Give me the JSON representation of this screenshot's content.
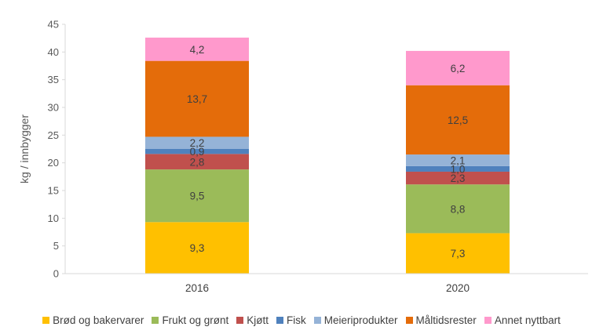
{
  "chart_data": {
    "type": "bar",
    "stacked": true,
    "categories": [
      "2016",
      "2020"
    ],
    "ylabel": "kg / innbygger",
    "xlabel": "",
    "ylim": [
      0,
      45
    ],
    "yticks": [
      "0",
      "5",
      "10",
      "15",
      "20",
      "25",
      "30",
      "35",
      "40",
      "45"
    ],
    "grid": false,
    "legend_position": "bottom",
    "series": [
      {
        "name": "Brød og bakervarer",
        "color": "#FFC000",
        "values": [
          9.3,
          7.3
        ],
        "labels": [
          "9,3",
          "7,3"
        ]
      },
      {
        "name": "Frukt og grønt",
        "color": "#9BBB59",
        "values": [
          9.5,
          8.8
        ],
        "labels": [
          "9,5",
          "8,8"
        ]
      },
      {
        "name": "Kjøtt",
        "color": "#C0504D",
        "values": [
          2.8,
          2.3
        ],
        "labels": [
          "2,8",
          "2,3"
        ]
      },
      {
        "name": "Fisk",
        "color": "#4F81BD",
        "values": [
          0.9,
          1.0
        ],
        "labels": [
          "0,9",
          "1,0"
        ]
      },
      {
        "name": "Meieriprodukter",
        "color": "#95B3D7",
        "values": [
          2.2,
          2.1
        ],
        "labels": [
          "2,2",
          "2,1"
        ]
      },
      {
        "name": "Måltidsrester",
        "color": "#E46C0A",
        "values": [
          13.7,
          12.5
        ],
        "labels": [
          "13,7",
          "12,5"
        ]
      },
      {
        "name": "Annet nyttbart",
        "color": "#FF99CC",
        "values": [
          4.2,
          6.2
        ],
        "labels": [
          "4,2",
          "6,2"
        ]
      }
    ]
  }
}
